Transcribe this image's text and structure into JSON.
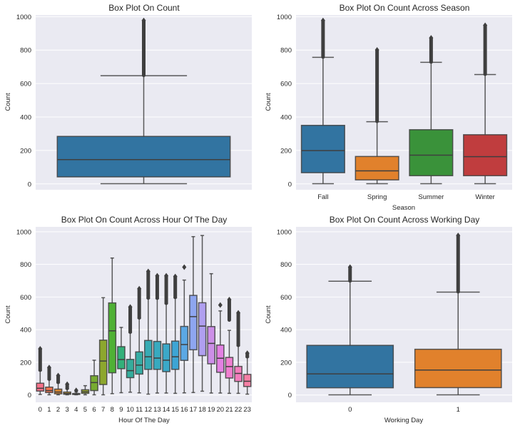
{
  "chart_data": [
    {
      "type": "box",
      "title": "Box Plot On Count",
      "xlabel": "",
      "ylabel": "Count",
      "ylim": [
        -35,
        1010
      ],
      "yticks": [
        0,
        200,
        400,
        600,
        800,
        1000
      ],
      "grid": true,
      "categories": [
        ""
      ],
      "boxes": [
        {
          "label": "",
          "color": "#3274a1",
          "q1": 42,
          "median": 145,
          "q3": 284,
          "whislo": 1,
          "whishi": 647,
          "fliers_min": 647,
          "fliers_max": 977
        }
      ]
    },
    {
      "type": "box",
      "title": "Box Plot On Count Across Season",
      "xlabel": "Season",
      "ylabel": "Count",
      "ylim": [
        -35,
        1010
      ],
      "yticks": [
        0,
        200,
        400,
        600,
        800,
        1000
      ],
      "grid": true,
      "categories": [
        "Fall",
        "Spring",
        "Summer",
        "Winter"
      ],
      "boxes": [
        {
          "label": "Fall",
          "color": "#3274a1",
          "q1": 67,
          "median": 199,
          "q3": 350,
          "whislo": 1,
          "whishi": 757,
          "fliers_min": 757,
          "fliers_max": 977
        },
        {
          "label": "Spring",
          "color": "#e1812c",
          "q1": 24,
          "median": 78,
          "q3": 164,
          "whislo": 1,
          "whishi": 372,
          "fliers_min": 372,
          "fliers_max": 801
        },
        {
          "label": "Summer",
          "color": "#3a923a",
          "q1": 49,
          "median": 172,
          "q3": 324,
          "whislo": 1,
          "whishi": 727,
          "fliers_min": 727,
          "fliers_max": 873
        },
        {
          "label": "Winter",
          "color": "#c03d3e",
          "q1": 49,
          "median": 163,
          "q3": 294,
          "whislo": 1,
          "whishi": 654,
          "fliers_min": 654,
          "fliers_max": 948
        }
      ]
    },
    {
      "type": "box",
      "title": "Box Plot On Count Across Hour Of The Day",
      "xlabel": "Hour Of The Day",
      "ylabel": "Count",
      "ylim": [
        -45,
        1030
      ],
      "yticks": [
        0,
        200,
        400,
        600,
        800,
        1000
      ],
      "grid": true,
      "categories": [
        "0",
        "1",
        "2",
        "3",
        "4",
        "5",
        "6",
        "7",
        "8",
        "9",
        "10",
        "11",
        "12",
        "13",
        "14",
        "15",
        "16",
        "17",
        "18",
        "19",
        "20",
        "21",
        "22",
        "23"
      ],
      "boxes": [
        {
          "label": "0",
          "color": "#f77189",
          "q1": 24,
          "median": 41,
          "q3": 72,
          "whislo": 3,
          "whishi": 150,
          "fliers_min": 150,
          "fliers_max": 283
        },
        {
          "label": "1",
          "color": "#f7754f",
          "q1": 15,
          "median": 27,
          "q3": 48,
          "whislo": 1,
          "whishi": 95,
          "fliers_min": 95,
          "fliers_max": 168
        },
        {
          "label": "2",
          "color": "#dc8932",
          "q1": 7,
          "median": 18,
          "q3": 36,
          "whislo": 1,
          "whishi": 75,
          "fliers_min": 75,
          "fliers_max": 119
        },
        {
          "label": "3",
          "color": "#c39532",
          "q1": 4,
          "median": 9,
          "q3": 18,
          "whislo": 1,
          "whishi": 38,
          "fliers_min": 38,
          "fliers_max": 66
        },
        {
          "label": "4",
          "color": "#ae9d31",
          "q1": 3,
          "median": 6,
          "q3": 9,
          "whislo": 1,
          "whishi": 18,
          "fliers_min": 18,
          "fliers_max": 28
        },
        {
          "label": "5",
          "color": "#97a431",
          "q1": 10,
          "median": 19,
          "q3": 32,
          "whislo": 1,
          "whishi": 57,
          "fliers_min": null,
          "fliers_max": null
        },
        {
          "label": "6",
          "color": "#77ab31",
          "q1": 27,
          "median": 76,
          "q3": 118,
          "whislo": 1,
          "whishi": 213,
          "fliers_min": null,
          "fliers_max": null
        },
        {
          "label": "7",
          "color": "#8da72e",
          "q1": 64,
          "median": 208,
          "q3": 336,
          "whislo": 1,
          "whishi": 596,
          "fliers_min": null,
          "fliers_max": null
        },
        {
          "label": "8",
          "color": "#4fb135",
          "q1": 136,
          "median": 393,
          "q3": 564,
          "whislo": 8,
          "whishi": 839,
          "fliers_min": null,
          "fliers_max": null
        },
        {
          "label": "9",
          "color": "#33b07a",
          "q1": 161,
          "median": 217,
          "q3": 296,
          "whislo": 14,
          "whishi": 414,
          "fliers_min": null,
          "fliers_max": null
        },
        {
          "label": "10",
          "color": "#35ad9c",
          "q1": 106,
          "median": 149,
          "q3": 218,
          "whislo": 17,
          "whishi": 383,
          "fliers_min": 383,
          "fliers_max": 539
        },
        {
          "label": "11",
          "color": "#36ada4",
          "q1": 128,
          "median": 183,
          "q3": 264,
          "whislo": 13,
          "whishi": 470,
          "fliers_min": 470,
          "fliers_max": 651
        },
        {
          "label": "12",
          "color": "#37abb4",
          "q1": 157,
          "median": 234,
          "q3": 334,
          "whislo": 5,
          "whishi": 592,
          "fliers_min": 592,
          "fliers_max": 757
        },
        {
          "label": "13",
          "color": "#38aabf",
          "q1": 157,
          "median": 226,
          "q3": 328,
          "whislo": 12,
          "whishi": 591,
          "fliers_min": 591,
          "fliers_max": 730
        },
        {
          "label": "14",
          "color": "#3ba8c8",
          "q1": 143,
          "median": 213,
          "q3": 313,
          "whislo": 12,
          "whishi": 560,
          "fliers_min": 560,
          "fliers_max": 730
        },
        {
          "label": "15",
          "color": "#3ea5d4",
          "q1": 157,
          "median": 234,
          "q3": 330,
          "whislo": 10,
          "whishi": 596,
          "fliers_min": 596,
          "fliers_max": 726
        },
        {
          "label": "16",
          "color": "#5ba8e4",
          "q1": 212,
          "median": 309,
          "q3": 420,
          "whislo": 13,
          "whishi": 704,
          "fliers_min": 783,
          "fliers_max": 783
        },
        {
          "label": "17",
          "color": "#8ea6f0",
          "q1": 277,
          "median": 480,
          "q3": 610,
          "whislo": 15,
          "whishi": 970,
          "fliers_min": null,
          "fliers_max": null
        },
        {
          "label": "18",
          "color": "#b09ff0",
          "q1": 241,
          "median": 422,
          "q3": 565,
          "whislo": 23,
          "whishi": 977,
          "fliers_min": null,
          "fliers_max": null
        },
        {
          "label": "19",
          "color": "#cc8fe8",
          "q1": 191,
          "median": 316,
          "q3": 419,
          "whislo": 12,
          "whishi": 743,
          "fliers_min": null,
          "fliers_max": null
        },
        {
          "label": "20",
          "color": "#e381e3",
          "q1": 139,
          "median": 225,
          "q3": 306,
          "whislo": 12,
          "whishi": 515,
          "fliers_min": 551,
          "fliers_max": 551
        },
        {
          "label": "21",
          "color": "#f07fd0",
          "q1": 104,
          "median": 174,
          "q3": 230,
          "whislo": 10,
          "whishi": 396,
          "fliers_min": 457,
          "fliers_max": 584
        },
        {
          "label": "22",
          "color": "#f37ebd",
          "q1": 83,
          "median": 132,
          "q3": 175,
          "whislo": 10,
          "whishi": 302,
          "fliers_min": 302,
          "fliers_max": 503
        },
        {
          "label": "23",
          "color": "#f57fa5",
          "q1": 52,
          "median": 84,
          "q3": 126,
          "whislo": 5,
          "whishi": 232,
          "fliers_min": 232,
          "fliers_max": 256
        }
      ]
    },
    {
      "type": "box",
      "title": "Box Plot On Count Across Working Day",
      "xlabel": "Working Day",
      "ylabel": "Count",
      "ylim": [
        -45,
        1030
      ],
      "yticks": [
        0,
        200,
        400,
        600,
        800,
        1000
      ],
      "grid": true,
      "categories": [
        "0",
        "1"
      ],
      "boxes": [
        {
          "label": "0",
          "color": "#3274a1",
          "q1": 44,
          "median": 129,
          "q3": 304,
          "whislo": 1,
          "whishi": 697,
          "fliers_min": 697,
          "fliers_max": 783
        },
        {
          "label": "1",
          "color": "#e1812c",
          "q1": 45,
          "median": 153,
          "q3": 280,
          "whislo": 1,
          "whishi": 630,
          "fliers_min": 630,
          "fliers_max": 977
        }
      ]
    }
  ]
}
